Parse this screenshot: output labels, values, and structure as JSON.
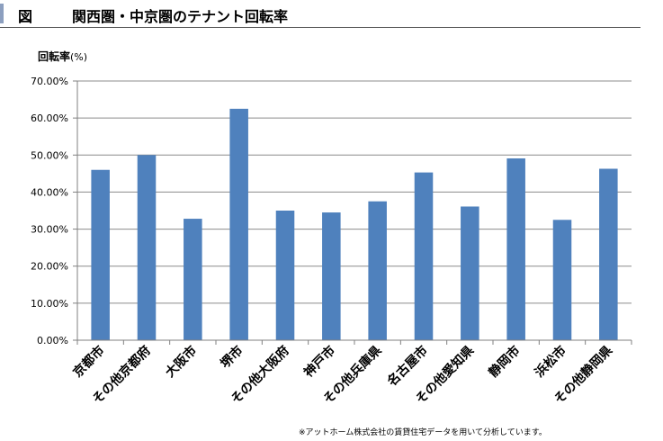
{
  "header": {
    "figure_label": "図",
    "title": "関西圏・中京圏のテナント回転率"
  },
  "colors": {
    "bar": "#4f81bd",
    "grid": "#8c8c8c",
    "accent": "#8c9fbf"
  },
  "chart_data": {
    "type": "bar",
    "title": "関西圏・中京圏のテナント回転率",
    "ylabel": "回転率",
    "ylabel_unit": "(%)",
    "xlabel": "",
    "ylim": [
      0,
      70
    ],
    "yticks": [
      0,
      10,
      20,
      30,
      40,
      50,
      60,
      70
    ],
    "ytick_labels": [
      "0.00%",
      "10.00%",
      "20.00%",
      "30.00%",
      "40.00%",
      "50.00%",
      "60.00%",
      "70.00%"
    ],
    "grid": true,
    "legend": "none",
    "categories": [
      "京都市",
      "その他京都府",
      "大阪市",
      "堺市",
      "その他大阪府",
      "神戸市",
      "その他兵庫県",
      "名古屋市",
      "その他愛知県",
      "静岡市",
      "浜松市",
      "その他静岡県"
    ],
    "values": [
      46.0,
      50.0,
      32.8,
      62.5,
      35.0,
      34.5,
      37.5,
      45.3,
      36.1,
      49.1,
      32.5,
      46.3
    ]
  },
  "footnote": "※アットホーム株式会社の賃貸住宅データを用いて分析しています。"
}
